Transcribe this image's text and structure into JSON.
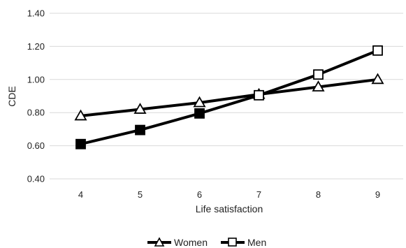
{
  "chart_data": {
    "type": "line",
    "title": "",
    "xlabel": "Life satisfaction",
    "ylabel": "CDE",
    "x": [
      4,
      5,
      6,
      7,
      8,
      9
    ],
    "x_tick_labels": [
      "4",
      "5",
      "6",
      "7",
      "8",
      "9"
    ],
    "ylim": [
      0.4,
      1.4
    ],
    "y_ticks": [
      0.4,
      0.6,
      0.8,
      1.0,
      1.2,
      1.4
    ],
    "y_tick_labels": [
      "0.40",
      "0.60",
      "0.80",
      "1.00",
      "1.20",
      "1.40"
    ],
    "grid": "horizontal",
    "legend_position": "bottom",
    "series": [
      {
        "name": "Women",
        "marker": "triangle",
        "color": "#000000",
        "fill": [
          "#ffffff",
          "#ffffff",
          "#ffffff",
          "#ffffff",
          "#ffffff",
          "#ffffff"
        ],
        "values": [
          0.78,
          0.82,
          0.86,
          0.91,
          0.955,
          1.0
        ]
      },
      {
        "name": "Men",
        "marker": "square",
        "color": "#000000",
        "fill": [
          "#000000",
          "#000000",
          "#000000",
          "#ffffff",
          "#ffffff",
          "#ffffff"
        ],
        "values": [
          0.61,
          0.695,
          0.795,
          0.905,
          1.03,
          1.175
        ]
      }
    ]
  }
}
